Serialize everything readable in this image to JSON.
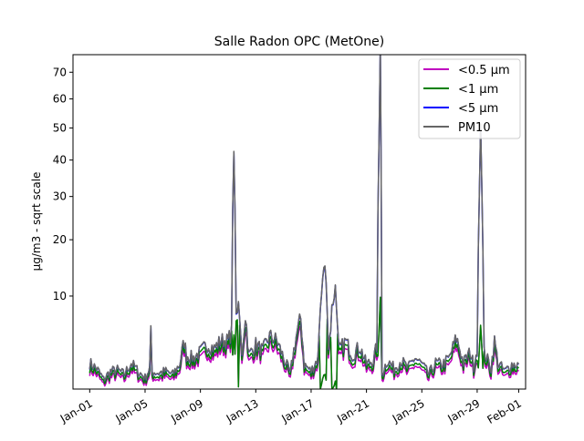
{
  "chart_data": {
    "type": "line",
    "title": "Salle Radon OPC (MetOne)",
    "xlabel": "",
    "ylabel": "µg/m3 - sqrt scale",
    "y_scale": "sqrt",
    "ylim": [
      1.0,
      77
    ],
    "xlim": [
      "2023-12-30T19:00",
      "2024-02-01T12:00"
    ],
    "y_ticks": [
      10,
      20,
      30,
      40,
      50,
      60,
      70
    ],
    "x_ticks": [
      {
        "date": "2024-01-01",
        "label": "Jan-01"
      },
      {
        "date": "2024-01-05",
        "label": "Jan-05"
      },
      {
        "date": "2024-01-09",
        "label": "Jan-09"
      },
      {
        "date": "2024-01-13",
        "label": "Jan-13"
      },
      {
        "date": "2024-01-17",
        "label": "Jan-17"
      },
      {
        "date": "2024-01-21",
        "label": "Jan-21"
      },
      {
        "date": "2024-01-25",
        "label": "Jan-25"
      },
      {
        "date": "2024-01-29",
        "label": "Jan-29"
      },
      {
        "date": "2024-02-01",
        "label": "Feb-01"
      }
    ],
    "legend_position": "top-right",
    "series": [
      {
        "name": "<0.5 µm",
        "color": "#bf00bf"
      },
      {
        "name": "<1 µm",
        "color": "#008000"
      },
      {
        "name": "<5 µm",
        "color": "#0000ff"
      },
      {
        "name": "PM10",
        "color": "#666666"
      }
    ],
    "pm10_points": [
      [
        "2024-01-01T00:00",
        2.6
      ],
      [
        "2024-01-01T12:00",
        2.2
      ],
      [
        "2024-01-02T00:00",
        1.5
      ],
      [
        "2024-01-02T12:00",
        2.0
      ],
      [
        "2024-01-03T00:00",
        2.1
      ],
      [
        "2024-01-03T12:00",
        1.8
      ],
      [
        "2024-01-04T00:00",
        2.6
      ],
      [
        "2024-01-04T12:00",
        2.0
      ],
      [
        "2024-01-05T00:00",
        1.6
      ],
      [
        "2024-01-05T08:00",
        2.2
      ],
      [
        "2024-01-05T12:00",
        2.0
      ],
      [
        "2024-01-05T10:00",
        5.3
      ],
      [
        "2024-01-06T00:00",
        1.9
      ],
      [
        "2024-01-06T12:00",
        2.0
      ],
      [
        "2024-01-07T00:00",
        1.8
      ],
      [
        "2024-01-07T12:00",
        2.5
      ],
      [
        "2024-01-07T20:00",
        4.5
      ],
      [
        "2024-01-08T00:00",
        3.2
      ],
      [
        "2024-01-08T12:00",
        3.0
      ],
      [
        "2024-01-09T00:00",
        3.5
      ],
      [
        "2024-01-09T12:00",
        4.2
      ],
      [
        "2024-01-10T00:00",
        3.8
      ],
      [
        "2024-01-10T12:00",
        4.6
      ],
      [
        "2024-01-11T00:00",
        4.5
      ],
      [
        "2024-01-11T06:00",
        5.5
      ],
      [
        "2024-01-11T10:00",
        48.0
      ],
      [
        "2024-01-11T14:00",
        6.5
      ],
      [
        "2024-01-11T18:00",
        9.0
      ],
      [
        "2024-01-12T00:00",
        3.0
      ],
      [
        "2024-01-12T06:00",
        7.5
      ],
      [
        "2024-01-12T12:00",
        3.2
      ],
      [
        "2024-01-13T00:00",
        4.2
      ],
      [
        "2024-01-13T12:00",
        3.6
      ],
      [
        "2024-01-14T00:00",
        5.0
      ],
      [
        "2024-01-14T12:00",
        4.6
      ],
      [
        "2024-01-15T00:00",
        3.0
      ],
      [
        "2024-01-15T12:00",
        1.8
      ],
      [
        "2024-01-16T00:00",
        5.5
      ],
      [
        "2024-01-16T06:00",
        7.0
      ],
      [
        "2024-01-16T12:00",
        2.5
      ],
      [
        "2024-01-17T00:00",
        2.0
      ],
      [
        "2024-01-17T12:00",
        3.0
      ],
      [
        "2024-01-17T18:00",
        11.0
      ],
      [
        "2024-01-18T00:00",
        16.5
      ],
      [
        "2024-01-18T06:00",
        3.5
      ],
      [
        "2024-01-18T12:00",
        8.0
      ],
      [
        "2024-01-18T18:00",
        10.5
      ],
      [
        "2024-01-19T00:00",
        3.6
      ],
      [
        "2024-01-19T12:00",
        4.5
      ],
      [
        "2024-01-20T00:00",
        3.2
      ],
      [
        "2024-01-20T12:00",
        4.0
      ],
      [
        "2024-01-21T00:00",
        2.5
      ],
      [
        "2024-01-21T12:00",
        2.8
      ],
      [
        "2024-01-21T18:00",
        4.0
      ],
      [
        "2024-01-22T00:00",
        71.0
      ],
      [
        "2024-01-22T03:00",
        1.8
      ],
      [
        "2024-01-22T12:00",
        2.8
      ],
      [
        "2024-01-23T00:00",
        2.2
      ],
      [
        "2024-01-23T12:00",
        2.8
      ],
      [
        "2024-01-24T00:00",
        2.2
      ],
      [
        "2024-01-24T12:00",
        3.0
      ],
      [
        "2024-01-25T00:00",
        2.5
      ],
      [
        "2024-01-25T12:00",
        1.8
      ],
      [
        "2024-01-26T00:00",
        2.6
      ],
      [
        "2024-01-26T12:00",
        2.5
      ],
      [
        "2024-01-27T00:00",
        3.0
      ],
      [
        "2024-01-27T12:00",
        4.8
      ],
      [
        "2024-01-28T00:00",
        2.6
      ],
      [
        "2024-01-28T12:00",
        3.5
      ],
      [
        "2024-01-28T18:00",
        2.4
      ],
      [
        "2024-01-29T00:00",
        3.8
      ],
      [
        "2024-01-29T06:00",
        48.0
      ],
      [
        "2024-01-29T12:00",
        3.5
      ],
      [
        "2024-01-30T00:00",
        2.2
      ],
      [
        "2024-01-30T06:00",
        4.5
      ],
      [
        "2024-01-30T12:00",
        2.6
      ],
      [
        "2024-01-31T00:00",
        2.0
      ],
      [
        "2024-01-31T12:00",
        2.5
      ],
      [
        "2024-02-01T00:00",
        2.5
      ]
    ]
  }
}
